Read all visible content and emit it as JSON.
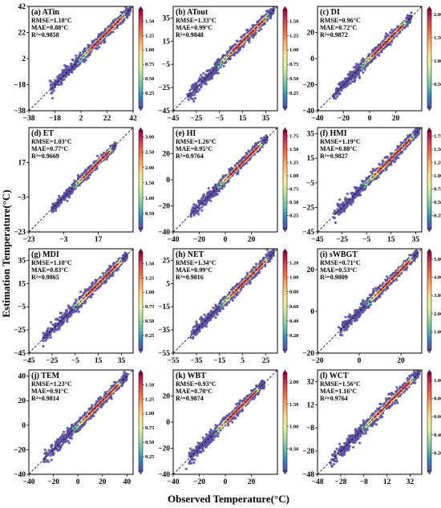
{
  "figure": {
    "ylabel": "Estimation Temperature(°C)",
    "xlabel": "Observed Temperature(°C)"
  },
  "colors": {
    "colormap": [
      "#5e4fa2",
      "#3288bd",
      "#66c2a5",
      "#abdda4",
      "#e6f598",
      "#fee08b",
      "#fdae61",
      "#f46d43",
      "#d53e4f",
      "#9e0142"
    ],
    "scatter_base": "#5e4fa2",
    "one_to_one_line": "#000000"
  },
  "chart_data": [
    {
      "type": "scatter",
      "title": "(a) ATin",
      "stats": [
        "RMSE=1.18°C",
        "MAE=0.88°C",
        "R²=0.9858"
      ],
      "xlim": [
        -38,
        42
      ],
      "ylim": [
        -38,
        42
      ],
      "xticks": [
        -38,
        -18,
        2,
        22,
        42
      ],
      "yticks": [
        -38,
        -18,
        2,
        22,
        42
      ],
      "colorbar": {
        "ticks": [
          "0.25",
          "0.50",
          "0.75",
          "1.00",
          "1.25",
          "1.50"
        ],
        "max": 1.7
      },
      "data_extent": {
        "x": [
          -22,
          40
        ],
        "y": [
          -24,
          40
        ]
      },
      "one_to_one_line": true
    },
    {
      "type": "scatter",
      "title": "(b) ATout",
      "stats": [
        "RMSE=1.33°C",
        "MAE=0.99°C",
        "R²=0.9848"
      ],
      "xlim": [
        -45,
        45
      ],
      "ylim": [
        -45,
        45
      ],
      "xticks": [
        -45,
        -25,
        -5,
        15,
        35
      ],
      "yticks": [
        -45,
        -25,
        -5,
        15,
        35
      ],
      "colorbar": {
        "ticks": [
          "0.25",
          "0.50",
          "0.75",
          "1.00",
          "1.25",
          "1.50"
        ],
        "max": 1.7
      },
      "data_extent": {
        "x": [
          -33,
          42
        ],
        "y": [
          -33,
          42
        ]
      },
      "one_to_one_line": true
    },
    {
      "type": "scatter",
      "title": "(c) DI",
      "stats": [
        "RMSE=0.96°C",
        "MAE=0.72°C",
        "R²=0.9872"
      ],
      "xlim": [
        -40,
        40
      ],
      "ylim": [
        -40,
        40
      ],
      "xticks": [
        -40,
        -20,
        0,
        20
      ],
      "yticks": [
        -40,
        -20,
        0,
        20
      ],
      "colorbar": {
        "ticks": [
          "0.50",
          "1.00",
          "1.50",
          "2.00"
        ],
        "max": 2.1
      },
      "data_extent": {
        "x": [
          -28,
          32
        ],
        "y": [
          -28,
          32
        ]
      },
      "one_to_one_line": true
    },
    {
      "type": "scatter",
      "title": "(d) ET",
      "stats": [
        "RMSE=1.03°C",
        "MAE=0.77°C",
        "R²=0.9669"
      ],
      "xlim": [
        -23,
        37
      ],
      "ylim": [
        -23,
        37
      ],
      "xticks": [
        -23,
        -3,
        17
      ],
      "yticks": [
        -23,
        -3,
        17
      ],
      "colorbar": {
        "ticks": [
          "0.50",
          "1.00",
          "1.50",
          "2.00",
          "2.50",
          "3.00"
        ],
        "max": 3.2
      },
      "data_extent": {
        "x": [
          -10,
          27
        ],
        "y": [
          -10,
          27
        ]
      },
      "one_to_one_line": true
    },
    {
      "type": "scatter",
      "title": "(e) HI",
      "stats": [
        "RMSE=1.26°C",
        "MAE=0.95°C",
        "R²=0.9764"
      ],
      "xlim": [
        -40,
        40
      ],
      "ylim": [
        -40,
        40
      ],
      "xticks": [
        -40,
        -20,
        0,
        20
      ],
      "yticks": [
        -40,
        -20,
        0,
        20
      ],
      "colorbar": {
        "ticks": [
          "0.25",
          "0.50",
          "0.75",
          "1.00",
          "1.25",
          "1.50",
          "1.75"
        ],
        "max": 1.85
      },
      "data_extent": {
        "x": [
          -27,
          32
        ],
        "y": [
          -27,
          32
        ]
      },
      "one_to_one_line": true
    },
    {
      "type": "scatter",
      "title": "(f) HMI",
      "stats": [
        "RMSE=1.19°C",
        "MAE=0.88°C",
        "R²=0.9827"
      ],
      "xlim": [
        -45,
        40
      ],
      "ylim": [
        -45,
        40
      ],
      "xticks": [
        -45,
        -25,
        -5,
        15,
        35
      ],
      "yticks": [
        -45,
        -25,
        -5,
        15,
        35
      ],
      "colorbar": {
        "ticks": [
          "0.25",
          "0.50",
          "0.75",
          "1.00",
          "1.25",
          "1.50",
          "1.75"
        ],
        "max": 1.85
      },
      "data_extent": {
        "x": [
          -32,
          38
        ],
        "y": [
          -32,
          38
        ]
      },
      "one_to_one_line": true
    },
    {
      "type": "scatter",
      "title": "(g) MDI",
      "stats": [
        "RMSE=1.10°C",
        "MAE=0.83°C",
        "R²=0.9865"
      ],
      "xlim": [
        -45,
        45
      ],
      "ylim": [
        -45,
        45
      ],
      "xticks": [
        -45,
        -25,
        -5,
        15,
        35
      ],
      "yticks": [
        -45,
        -25,
        -5,
        15,
        35
      ],
      "colorbar": {
        "ticks": [
          "0.25",
          "0.50",
          "0.75",
          "1.00",
          "1.25",
          "1.50"
        ],
        "max": 1.7
      },
      "data_extent": {
        "x": [
          -33,
          40
        ],
        "y": [
          -33,
          40
        ]
      },
      "one_to_one_line": true
    },
    {
      "type": "scatter",
      "title": "(h) NET",
      "stats": [
        "RMSE=1.34°C",
        "MAE=0.99°C",
        "R²=0.9816"
      ],
      "xlim": [
        -55,
        35
      ],
      "ylim": [
        -55,
        35
      ],
      "xticks": [
        -55,
        -35,
        -15,
        5,
        25
      ],
      "yticks": [
        -55,
        -35,
        -15,
        5,
        25
      ],
      "colorbar": {
        "ticks": [
          "0.20",
          "0.40",
          "0.60",
          "0.80",
          "1.00",
          "1.20"
        ],
        "max": 1.35
      },
      "data_extent": {
        "x": [
          -40,
          32
        ],
        "y": [
          -40,
          32
        ]
      },
      "one_to_one_line": true
    },
    {
      "type": "scatter",
      "title": "(i) sWBGT",
      "stats": [
        "RMSE=0.71°C",
        "MAE=0.53°C",
        "R²=0.9809"
      ],
      "xlim": [
        -20,
        30
      ],
      "ylim": [
        -20,
        30
      ],
      "xticks": [
        -20,
        0,
        20
      ],
      "yticks": [
        -20,
        0,
        20
      ],
      "colorbar": {
        "ticks": [
          "1.00",
          "2.00",
          "3.00",
          "4.00",
          "5.00"
        ],
        "max": 5.4
      },
      "data_extent": {
        "x": [
          -10,
          28
        ],
        "y": [
          -10,
          28
        ]
      },
      "one_to_one_line": true
    },
    {
      "type": "scatter",
      "title": "(j) TEM",
      "stats": [
        "RMSE=1.23°C",
        "MAE=0.91°C",
        "R²=0.9814"
      ],
      "xlim": [
        -40,
        45
      ],
      "ylim": [
        -40,
        45
      ],
      "xticks": [
        -40,
        -20,
        0,
        20,
        40
      ],
      "yticks": [
        -40,
        -20,
        0,
        20,
        40
      ],
      "colorbar": {
        "ticks": [
          "0.25",
          "0.50",
          "0.75",
          "1.00",
          "1.25",
          "1.50"
        ],
        "max": 1.7
      },
      "data_extent": {
        "x": [
          -28,
          40
        ],
        "y": [
          -28,
          40
        ]
      },
      "one_to_one_line": true
    },
    {
      "type": "scatter",
      "title": "(k) WBT",
      "stats": [
        "RMSE=0.93°C",
        "MAE=0.70°C",
        "R²=0.9874"
      ],
      "xlim": [
        -40,
        40
      ],
      "ylim": [
        -40,
        40
      ],
      "xticks": [
        -40,
        -20,
        0,
        20
      ],
      "yticks": [
        -40,
        -20,
        0,
        20
      ],
      "colorbar": {
        "ticks": [
          "0.50",
          "1.00",
          "1.50",
          "2.00"
        ],
        "max": 2.2
      },
      "data_extent": {
        "x": [
          -30,
          30
        ],
        "y": [
          -30,
          30
        ]
      },
      "one_to_one_line": true
    },
    {
      "type": "scatter",
      "title": "(l) WCT",
      "stats": [
        "RMSE=1.56°C",
        "MAE=1.16°C",
        "R²=0.9764"
      ],
      "xlim": [
        -48,
        42
      ],
      "ylim": [
        -48,
        42
      ],
      "xticks": [
        -48,
        -28,
        -8,
        12,
        32
      ],
      "yticks": [
        -48,
        -28,
        -8,
        12,
        32
      ],
      "colorbar": {
        "ticks": [
          "0.20",
          "0.40",
          "0.60",
          "0.80",
          "1.00"
        ],
        "max": 1.08
      },
      "data_extent": {
        "x": [
          -38,
          40
        ],
        "y": [
          -38,
          40
        ]
      },
      "one_to_one_line": true
    }
  ]
}
